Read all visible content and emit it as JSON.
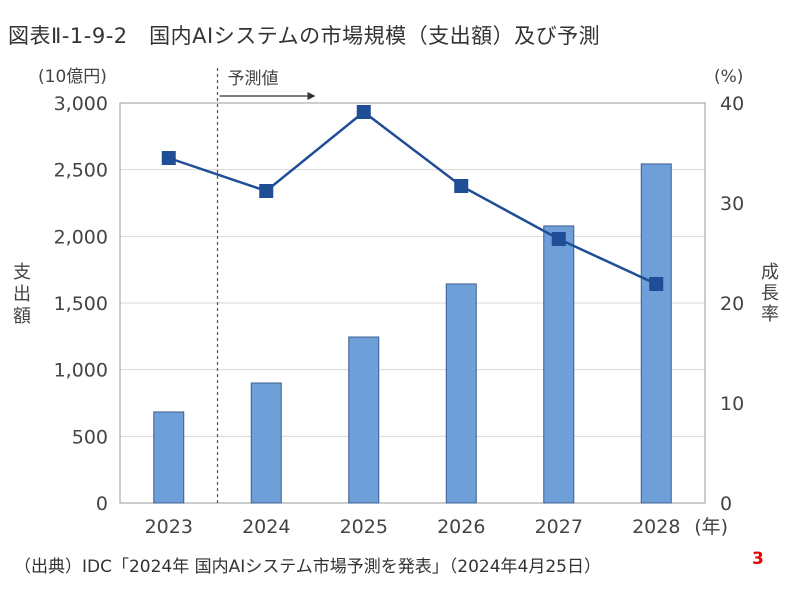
{
  "title": "図表Ⅱ-1-9-2　国内AIシステムの市場規模（支出額）及び予測",
  "source": "（出典）IDC「2024年 国内AIシステム市場予測を発表」（2024年4月25日）",
  "page_number": "3",
  "chart_data": {
    "type": "bar+line",
    "categories": [
      "2023",
      "2024",
      "2025",
      "2026",
      "2027",
      "2028"
    ],
    "x_unit": "(年)",
    "series": [
      {
        "name": "支出額",
        "type": "bar",
        "axis": "left",
        "color": "#6f9fd8",
        "values": [
          683,
          900,
          1245,
          1643,
          2078,
          2543
        ]
      },
      {
        "name": "成長率",
        "type": "line",
        "axis": "right",
        "color": "#1f4e96",
        "values": [
          34.5,
          31.2,
          39.1,
          31.7,
          26.4,
          21.9
        ]
      }
    ],
    "left_axis": {
      "label": "支出額",
      "unit": "(10億円)",
      "ylim": [
        0,
        3000
      ],
      "ticks": [
        "0",
        "500",
        "1,000",
        "1,500",
        "2,000",
        "2,500",
        "3,000"
      ]
    },
    "right_axis": {
      "label": "成長率",
      "unit": "(%)",
      "ylim": [
        0,
        40
      ],
      "ticks": [
        "0",
        "10",
        "20",
        "30",
        "40"
      ]
    },
    "annotation": "予測値",
    "forecast_from": "2024",
    "grid": true
  }
}
